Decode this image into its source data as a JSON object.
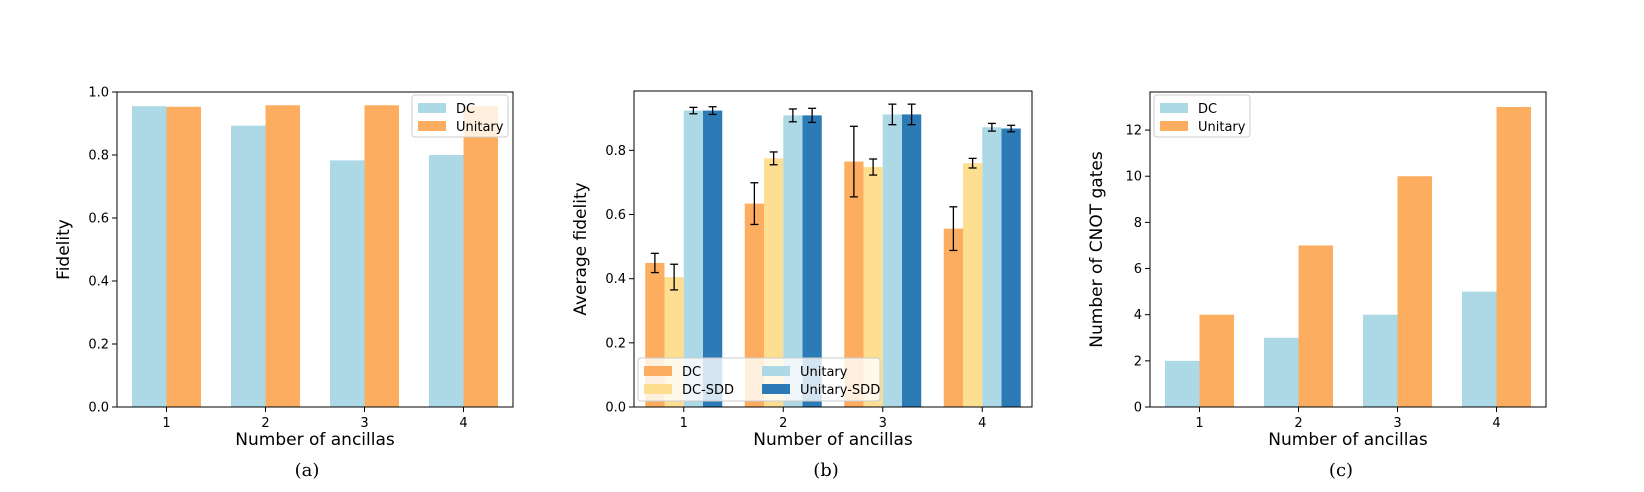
{
  "colors": {
    "dc": "#add8e6",
    "unitary": "#fdad5f",
    "dc_sdd": "#fedf92",
    "unitary_sdd": "#2c7bb6",
    "dc_b": "#fdad5f",
    "unitary_b": "#add8e6"
  },
  "chart_data": [
    {
      "type": "bar",
      "caption": "(a)",
      "xlabel": "Number of ancillas",
      "ylabel": "Fidelity",
      "categories": [
        "1",
        "2",
        "3",
        "4"
      ],
      "ylim": [
        0,
        1.0
      ],
      "yticks": [
        "0.0",
        "0.2",
        "0.4",
        "0.6",
        "0.8",
        "1.0"
      ],
      "legend_position": "top-right",
      "series": [
        {
          "name": "DC",
          "color_key": "dc",
          "values": [
            0.955,
            0.893,
            0.783,
            0.8
          ]
        },
        {
          "name": "Unitary",
          "color_key": "unitary",
          "values": [
            0.953,
            0.958,
            0.958,
            0.955
          ]
        }
      ]
    },
    {
      "type": "bar",
      "caption": "(b)",
      "xlabel": "Number of ancillas",
      "ylabel": "Average fidelity",
      "categories": [
        "1",
        "2",
        "3",
        "4"
      ],
      "ylim": [
        0,
        0.985
      ],
      "yticks": [
        "0.0",
        "0.2",
        "0.4",
        "0.6",
        "0.8"
      ],
      "legend_position": "bottom-left",
      "series": [
        {
          "name": "DC",
          "color_key": "dc_b",
          "values": [
            0.449,
            0.634,
            0.765,
            0.556
          ],
          "errors": [
            0.03,
            0.065,
            0.11,
            0.068
          ]
        },
        {
          "name": "DC-SDD",
          "color_key": "dc_sdd",
          "values": [
            0.405,
            0.775,
            0.748,
            0.76
          ],
          "errors": [
            0.04,
            0.02,
            0.025,
            0.015
          ]
        },
        {
          "name": "Unitary",
          "color_key": "unitary_b",
          "values": [
            0.924,
            0.909,
            0.912,
            0.872
          ],
          "errors": [
            0.01,
            0.02,
            0.032,
            0.012
          ]
        },
        {
          "name": "Unitary-SDD",
          "color_key": "unitary_sdd",
          "values": [
            0.924,
            0.909,
            0.912,
            0.868
          ],
          "errors": [
            0.012,
            0.022,
            0.032,
            0.01
          ]
        }
      ]
    },
    {
      "type": "bar",
      "caption": "(c)",
      "xlabel": "Number of ancillas",
      "ylabel": "Number of CNOT gates",
      "categories": [
        "1",
        "2",
        "3",
        "4"
      ],
      "ylim": [
        0,
        13.65
      ],
      "yticks": [
        "0",
        "2",
        "4",
        "6",
        "8",
        "10",
        "12"
      ],
      "legend_position": "top-left",
      "series": [
        {
          "name": "DC",
          "color_key": "dc",
          "values": [
            2,
            3,
            4,
            5
          ]
        },
        {
          "name": "Unitary",
          "color_key": "unitary",
          "values": [
            4,
            7,
            10,
            13
          ]
        }
      ]
    }
  ]
}
